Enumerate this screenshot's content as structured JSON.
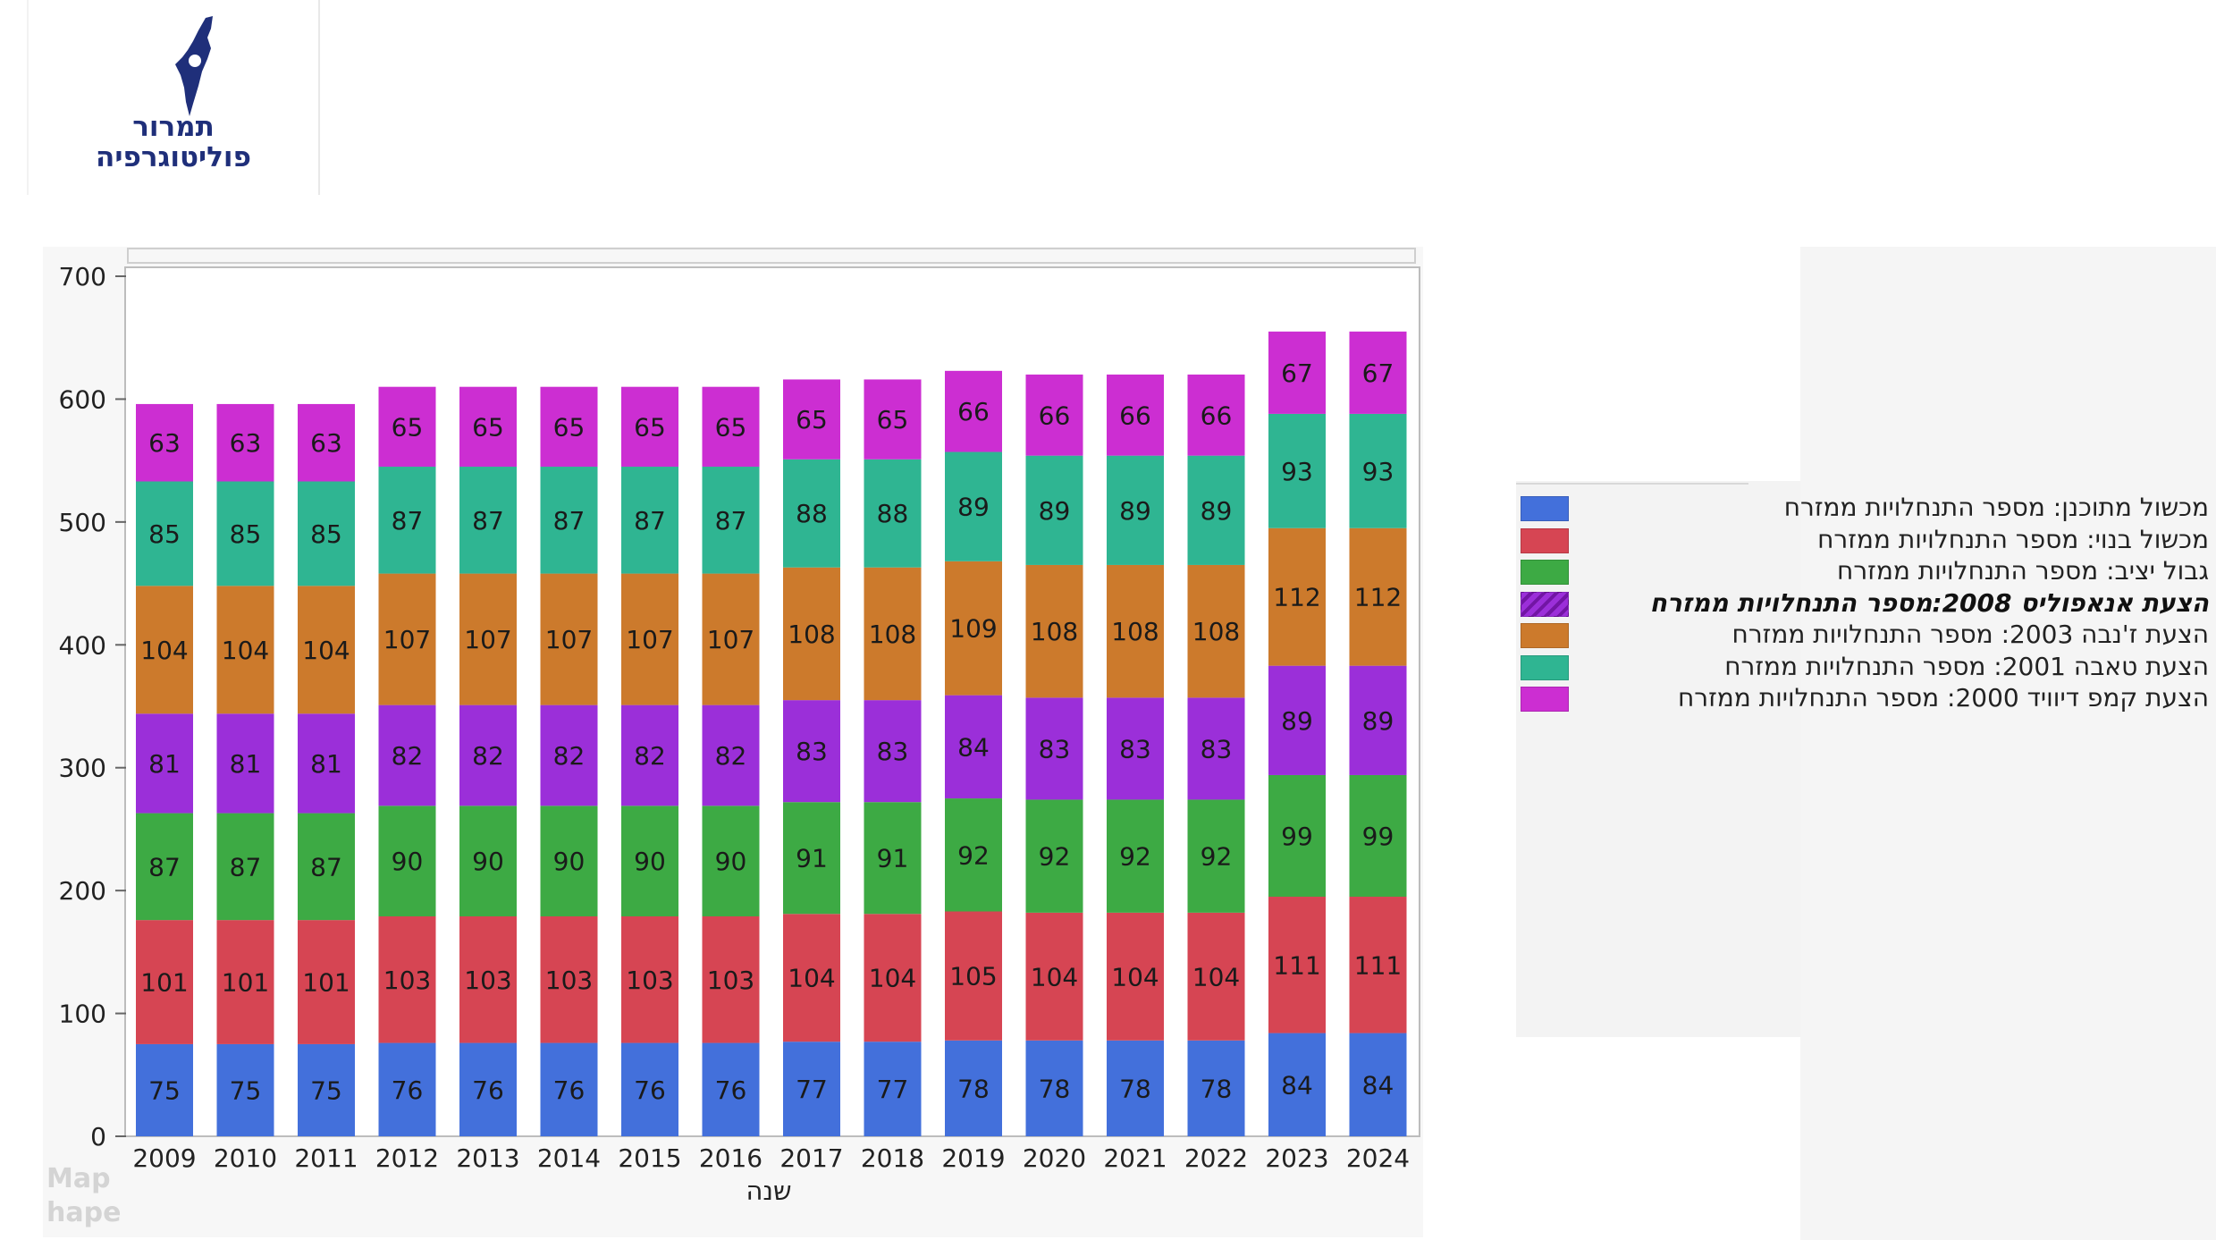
{
  "logo": {
    "line1": "תמרור",
    "line2": "פוליטוגרפיה",
    "icon": "israel-map-icon",
    "color": "#1f2f7a"
  },
  "watermark": {
    "line1": "Map",
    "line2": "hape"
  },
  "chart_data": {
    "type": "bar",
    "stacked": true,
    "xlabel": "שנה",
    "ylabel": "",
    "ylim": [
      0,
      700
    ],
    "yticks": [
      0,
      100,
      200,
      300,
      400,
      500,
      600,
      700
    ],
    "grid": false,
    "legend_position": "right",
    "categories": [
      "2009",
      "2010",
      "2011",
      "2012",
      "2013",
      "2014",
      "2015",
      "2016",
      "2017",
      "2018",
      "2019",
      "2020",
      "2021",
      "2022",
      "2023",
      "2024"
    ],
    "series": [
      {
        "name": "מכשול מתוכנן: מספר התנחלויות ממזרח",
        "color": "#4370db",
        "values": [
          75,
          75,
          75,
          76,
          76,
          76,
          76,
          76,
          77,
          77,
          78,
          78,
          78,
          78,
          84,
          84
        ]
      },
      {
        "name": "מכשול בנוי: מספר התנחלויות ממזרח",
        "color": "#d64553",
        "values": [
          101,
          101,
          101,
          103,
          103,
          103,
          103,
          103,
          104,
          104,
          105,
          104,
          104,
          104,
          111,
          111
        ]
      },
      {
        "name": "גבול יציב: מספר התנחלויות ממזרח",
        "color": "#3daa44",
        "values": [
          87,
          87,
          87,
          90,
          90,
          90,
          90,
          90,
          91,
          91,
          92,
          92,
          92,
          92,
          99,
          99
        ]
      },
      {
        "name": "הצעת אנאפוליס 2008:מספר התנחלויות ממזרח",
        "color": "#9b2fd9",
        "highlighted": true,
        "values": [
          81,
          81,
          81,
          82,
          82,
          82,
          82,
          82,
          83,
          83,
          84,
          83,
          83,
          83,
          89,
          89
        ]
      },
      {
        "name": "הצעת ז'נבה 2003: מספר התנחלויות ממזרח",
        "color": "#cc7a2c",
        "values": [
          104,
          104,
          104,
          107,
          107,
          107,
          107,
          107,
          108,
          108,
          109,
          108,
          108,
          108,
          112,
          112
        ]
      },
      {
        "name": "הצעת טאבה 2001: מספר התנחלויות ממזרח",
        "color": "#2fb592",
        "values": [
          85,
          85,
          85,
          87,
          87,
          87,
          87,
          87,
          88,
          88,
          89,
          89,
          89,
          89,
          93,
          93
        ]
      },
      {
        "name": "הצעת קמפ דיוויד 2000: מספר התנחלויות ממזרח",
        "color": "#cc2ed2",
        "values": [
          63,
          63,
          63,
          65,
          65,
          65,
          65,
          65,
          65,
          65,
          66,
          66,
          66,
          66,
          67,
          67
        ]
      }
    ]
  }
}
